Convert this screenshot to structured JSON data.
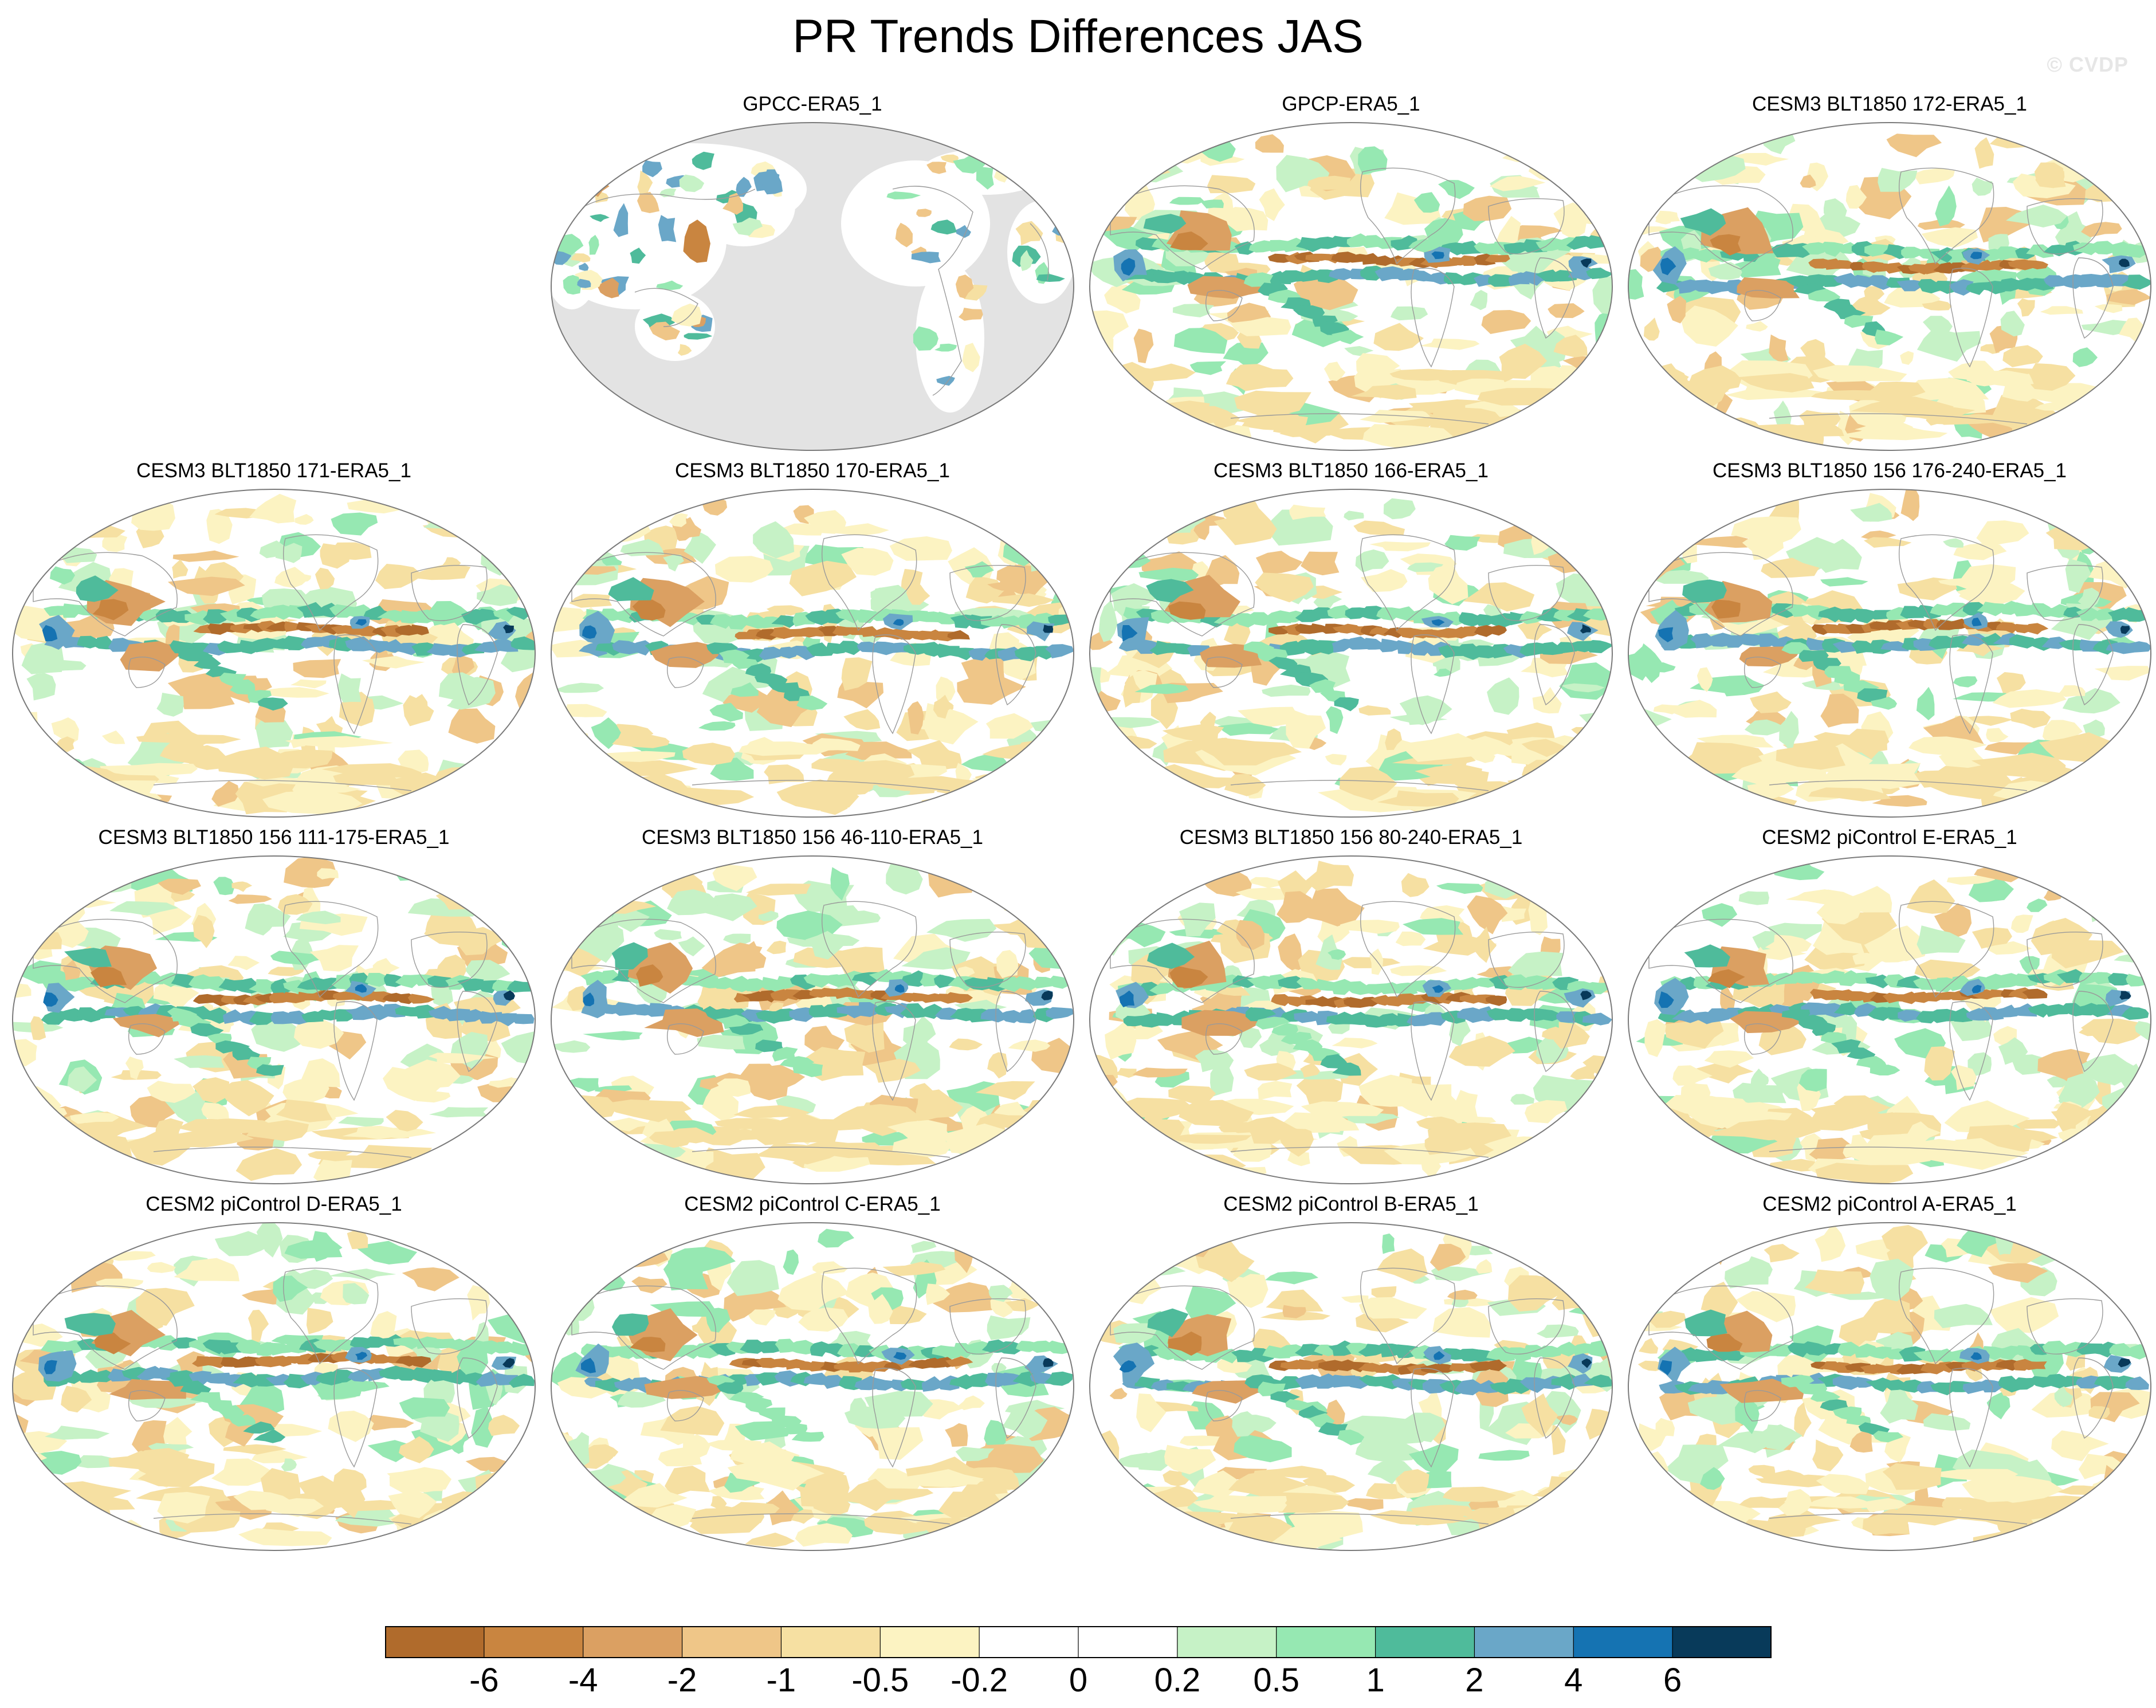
{
  "title": "PR Trends Differences JAS",
  "watermark": "© CVDP",
  "colors": {
    "land_mask": "#e3e3e3",
    "outline": "#7a7a7a",
    "coast": "#9a9a9a"
  },
  "colorbar": {
    "colors": [
      "#b06b2c",
      "#c98540",
      "#dba062",
      "#efc688",
      "#f6e0a2",
      "#fcf3c2",
      "#ffffff",
      "#ffffff",
      "#c6f2c6",
      "#96e8b2",
      "#4fbb9b",
      "#6aa7c8",
      "#1573b2",
      "#083a5a"
    ],
    "labels": [
      "-6",
      "-4",
      "-2",
      "-1",
      "-0.5",
      "-0.2",
      "0",
      "0.2",
      "0.5",
      "1",
      "2",
      "4",
      "6"
    ]
  },
  "panels": [
    {
      "title": "GPCC-ERA5_1",
      "kind": "land",
      "seed": 11
    },
    {
      "title": "GPCP-ERA5_1",
      "kind": "atlantic",
      "seed": 23
    },
    {
      "title": "CESM3 BLT1850 172-ERA5_1",
      "kind": "atlantic",
      "seed": 37
    },
    {
      "title": "CESM3 BLT1850 171-ERA5_1",
      "kind": "atlantic",
      "seed": 41
    },
    {
      "title": "CESM3 BLT1850 170-ERA5_1",
      "kind": "atlantic",
      "seed": 53
    },
    {
      "title": "CESM3 BLT1850 166-ERA5_1",
      "kind": "atlantic",
      "seed": 67
    },
    {
      "title": "CESM3 BLT1850 156 176-240-ERA5_1",
      "kind": "atlantic",
      "seed": 71
    },
    {
      "title": "CESM3 BLT1850 156 111-175-ERA5_1",
      "kind": "atlantic",
      "seed": 83
    },
    {
      "title": "CESM3 BLT1850 156 46-110-ERA5_1",
      "kind": "atlantic",
      "seed": 97
    },
    {
      "title": "CESM3 BLT1850 156 80-240-ERA5_1",
      "kind": "atlantic",
      "seed": 101
    },
    {
      "title": "CESM2 piControl E-ERA5_1",
      "kind": "atlantic",
      "seed": 113
    },
    {
      "title": "CESM2 piControl D-ERA5_1",
      "kind": "atlantic",
      "seed": 127
    },
    {
      "title": "CESM2 piControl C-ERA5_1",
      "kind": "atlantic",
      "seed": 131
    },
    {
      "title": "CESM2 piControl B-ERA5_1",
      "kind": "atlantic",
      "seed": 149
    },
    {
      "title": "CESM2 piControl A-ERA5_1",
      "kind": "atlantic",
      "seed": 157
    }
  ]
}
